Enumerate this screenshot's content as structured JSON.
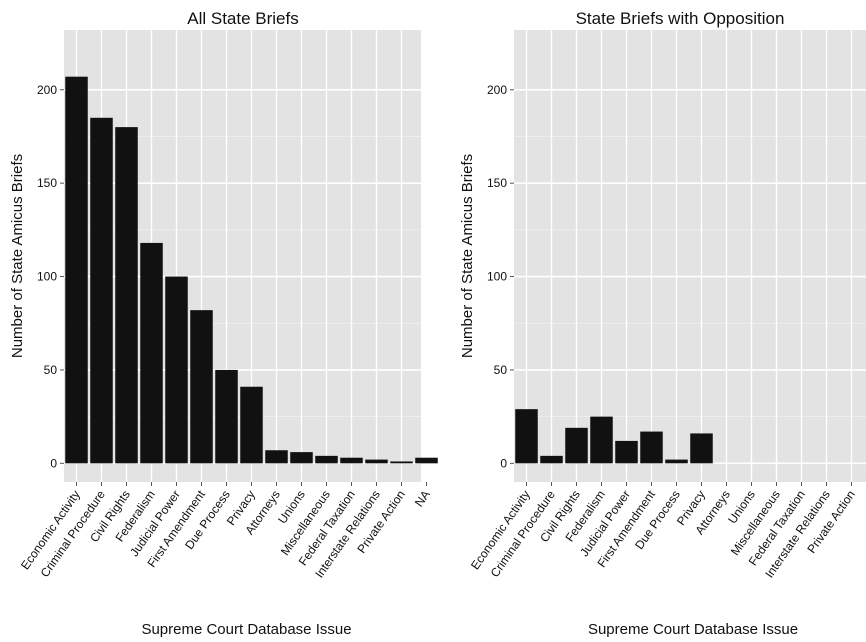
{
  "chart_data": [
    {
      "type": "bar",
      "title": "All State Briefs",
      "xlabel": "Supreme Court Database Issue",
      "ylabel": "Number of State Amicus Briefs",
      "categories": [
        "Economic Activity",
        "Criminal Procedure",
        "Civil Rights",
        "Federalism",
        "Judicial Power",
        "First Amendment",
        "Due Process",
        "Privacy",
        "Attorneys",
        "Unions",
        "Miscellaneous",
        "Federal Taxation",
        "Interstate Relations",
        "Private Action",
        "NA"
      ],
      "values": [
        207,
        185,
        180,
        118,
        100,
        82,
        50,
        41,
        7,
        6,
        4,
        3,
        2,
        1,
        3
      ],
      "yticks": [
        0,
        50,
        100,
        150,
        200
      ],
      "ylim": [
        -10,
        232
      ],
      "grid": true,
      "bar_color": "#111111",
      "panel_color": "#e3e3e3"
    },
    {
      "type": "bar",
      "title": "State Briefs with Opposition",
      "xlabel": "Supreme Court Database Issue",
      "ylabel": "Number of State Amicus Briefs",
      "categories": [
        "Economic Activity",
        "Criminal Procedure",
        "Civil Rights",
        "Federalism",
        "Judicial Power",
        "First Amendment",
        "Due Process",
        "Privacy",
        "Attorneys",
        "Unions",
        "Miscellaneous",
        "Federal Taxation",
        "Interstate Relations",
        "Private Action"
      ],
      "values": [
        29,
        4,
        19,
        25,
        12,
        17,
        2,
        16,
        0,
        0,
        0,
        0,
        0,
        0
      ],
      "yticks": [
        0,
        50,
        100,
        150,
        200
      ],
      "ylim": [
        -10,
        232
      ],
      "grid": true,
      "bar_color": "#111111",
      "panel_color": "#e3e3e3"
    }
  ]
}
